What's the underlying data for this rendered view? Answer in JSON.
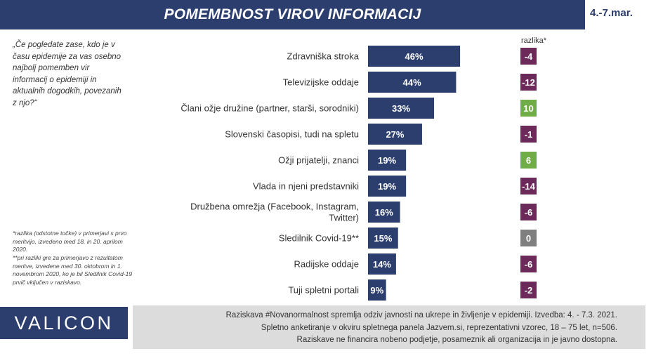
{
  "title": "POMEMBNOST VIROV INFORMACIJ",
  "date": "4.-7.mar.",
  "question": "„Če pogledate zase, kdo je v času epidemije za vas osebno najbolj pomemben vir informacij o epidemiji in aktualnih dogodkih, povezanih z njo?“",
  "footnote_1": "*razlika (odstotne točke) v primerjavi s prvo meritvijo, izvedeno med 18. in 20. aprilom 2020.",
  "footnote_2": "**pri razliki gre za primerjavo z rezultatom meritve, izvedene med 30. oktobrom in 1. novembrom 2020, ko je bil Sledilnik Covid-19 prvič vključen v raziskavo.",
  "logo": "VALICON",
  "info_lines": [
    "Raziskava #Novanormalnost spremlja odziv javnosti na ukrepe in življenje v epidemiji. Izvedba: 4. - 7.3. 2021.",
    "Spletno anketiranje v okviru spletnega panela Jazvem.si, reprezentativni vzorec, 18 – 75 let, n=506.",
    "Raziskave ne financira nobeno podjetje, posameznik ali organizacija in je javno dostopna."
  ],
  "diff_header": "razlika*",
  "colors": {
    "bar": "#2c3e6e",
    "negative": "#6b2a5a",
    "positive": "#70ad47",
    "zero": "#7f7f7f"
  },
  "chart_data": {
    "type": "bar",
    "orientation": "horizontal",
    "categories": [
      [
        "Zdravniška stroka"
      ],
      [
        "Televizijske oddaje"
      ],
      [
        "Člani ožje družine (partner, starši, sorodniki)"
      ],
      [
        "Slovenski časopisi, tudi na spletu"
      ],
      [
        "Ožji prijatelji, znanci"
      ],
      [
        "Vlada in njeni predstavniki"
      ],
      [
        "Družbena omrežja (Facebook, Instagram,",
        "Twitter)"
      ],
      [
        "Sledilnik Covid-19**"
      ],
      [
        "Radijske oddaje"
      ],
      [
        "Tuji spletni portali"
      ]
    ],
    "values": [
      46,
      44,
      33,
      27,
      19,
      19,
      16,
      15,
      14,
      9
    ],
    "value_labels": [
      "46%",
      "44%",
      "33%",
      "27%",
      "19%",
      "19%",
      "16%",
      "15%",
      "14%",
      "9%"
    ],
    "differences": [
      -4,
      -12,
      10,
      -1,
      6,
      -14,
      -6,
      0,
      -6,
      -2
    ],
    "difference_labels": [
      "-4",
      "-12",
      "10",
      "-1",
      "6",
      "-14",
      "-6",
      "0",
      "-6",
      "-2"
    ],
    "xlim": [
      0,
      50
    ]
  }
}
